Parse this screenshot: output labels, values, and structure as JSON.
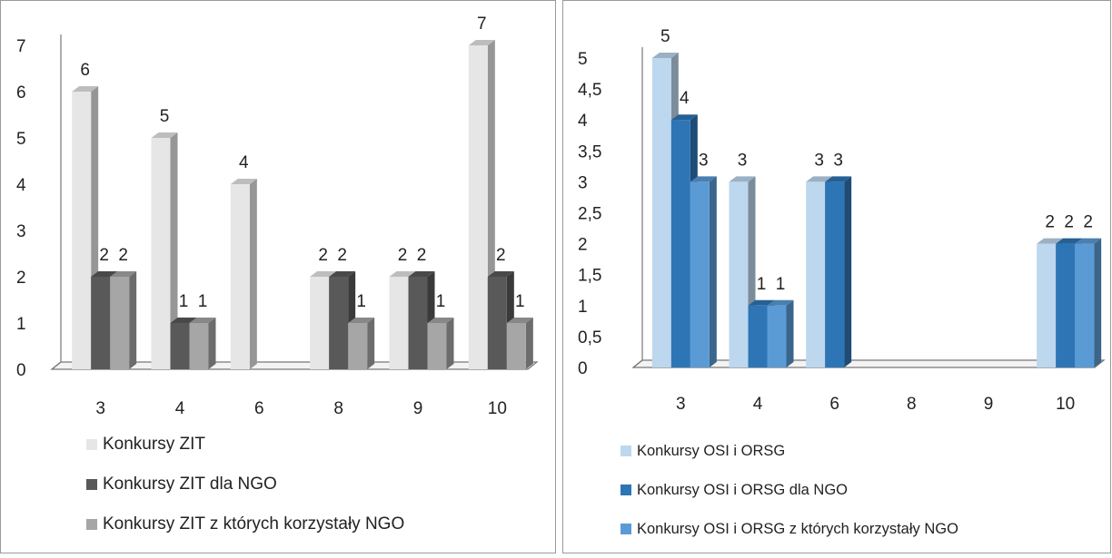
{
  "colors": {
    "axis": "#777777",
    "grid": "#bfbfbf"
  },
  "chart_data": [
    {
      "type": "bar",
      "title": "",
      "xlabel": "",
      "ylabel": "",
      "categories": [
        "3",
        "4",
        "6",
        "8",
        "9",
        "10"
      ],
      "ylim": [
        0,
        7
      ],
      "yticks": [
        "0",
        "1",
        "2",
        "3",
        "4",
        "5",
        "6",
        "7"
      ],
      "grid": false,
      "three_d": true,
      "legend_position": "bottom",
      "series": [
        {
          "name": "Konkursy ZIT",
          "color": "#e6e6e6",
          "values": [
            6,
            5,
            4,
            2,
            2,
            7
          ],
          "labels": [
            "6",
            "5",
            "4",
            "2",
            "2",
            "7"
          ]
        },
        {
          "name": "Konkursy ZIT dla NGO",
          "color": "#595959",
          "values": [
            2,
            1,
            0,
            2,
            2,
            2
          ],
          "labels": [
            "2",
            "1",
            "",
            "2",
            "2",
            "2"
          ]
        },
        {
          "name": "Konkursy ZIT z których korzystały NGO",
          "color": "#a6a6a6",
          "values": [
            2,
            1,
            0,
            1,
            1,
            1
          ],
          "labels": [
            "2",
            "1",
            "",
            "1",
            "1",
            "1"
          ]
        }
      ]
    },
    {
      "type": "bar",
      "title": "",
      "xlabel": "",
      "ylabel": "",
      "categories": [
        "3",
        "4",
        "6",
        "8",
        "9",
        "10"
      ],
      "ylim": [
        0,
        5
      ],
      "yticks": [
        "0",
        "0,5",
        "1",
        "1,5",
        "2",
        "2,5",
        "3",
        "3,5",
        "4",
        "4,5",
        "5"
      ],
      "grid": false,
      "three_d": true,
      "legend_position": "bottom",
      "series": [
        {
          "name": "Konkursy OSI i ORSG",
          "color": "#bdd7ee",
          "values": [
            5,
            3,
            3,
            0,
            0,
            2
          ],
          "labels": [
            "5",
            "3",
            "3",
            "",
            "",
            "2"
          ]
        },
        {
          "name": "Konkursy OSI i ORSG dla NGO",
          "color": "#2e75b6",
          "values": [
            4,
            1,
            3,
            0,
            0,
            2
          ],
          "labels": [
            "4",
            "1",
            "3",
            "",
            "",
            "2"
          ]
        },
        {
          "name": "Konkursy OSI i ORSG z których korzystały NGO",
          "color": "#5b9bd5",
          "values": [
            3,
            1,
            0,
            0,
            0,
            2
          ],
          "labels": [
            "3",
            "1",
            "",
            "",
            "",
            "2"
          ]
        }
      ]
    }
  ]
}
